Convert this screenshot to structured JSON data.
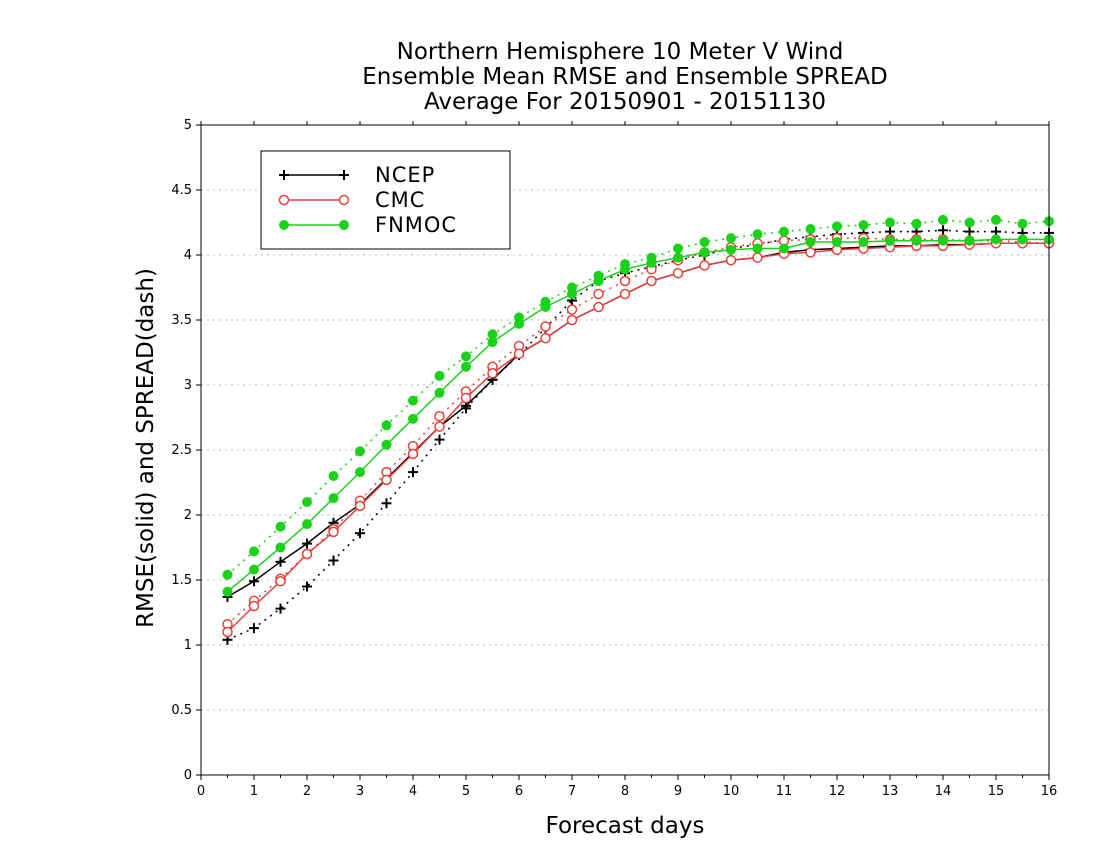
{
  "chart_data": {
    "type": "line",
    "title": [
      "Northern Hemisphere 10 Meter V Wind",
      "Ensemble Mean RMSE and Ensemble SPREAD",
      "Average For 20150901 - 20151130"
    ],
    "xlabel": "Forecast days",
    "ylabel": "RMSE(solid) and SPREAD(dash)",
    "xlim": [
      0,
      16
    ],
    "ylim": [
      0,
      5
    ],
    "xticks": [
      "0",
      "1",
      "2",
      "3",
      "4",
      "5",
      "6",
      "7",
      "8",
      "9",
      "10",
      "11",
      "12",
      "13",
      "14",
      "15",
      "16"
    ],
    "yticks": [
      "0",
      "0.5",
      "1",
      "1.5",
      "2",
      "2.5",
      "3",
      "3.5",
      "4",
      "4.5",
      "5"
    ],
    "grid": "dotted-horizontal",
    "legend_position": "top-left",
    "x": [
      0.5,
      1,
      1.5,
      2,
      2.5,
      3,
      3.5,
      4,
      4.5,
      5,
      5.5,
      6,
      6.5,
      7,
      7.5,
      8,
      8.5,
      9,
      9.5,
      10,
      10.5,
      11,
      11.5,
      12,
      12.5,
      13,
      13.5,
      14,
      14.5,
      15,
      15.5,
      16
    ],
    "series": [
      {
        "name": "NCEP",
        "marker": "plus",
        "color": "#000000",
        "rmse": [
          1.37,
          1.49,
          1.64,
          1.78,
          1.94,
          2.08,
          2.28,
          2.48,
          2.68,
          2.84,
          3.04,
          3.24,
          3.36,
          3.5,
          3.6,
          3.7,
          3.8,
          3.86,
          3.92,
          3.96,
          3.98,
          4.02,
          4.04,
          4.05,
          4.06,
          4.07,
          4.07,
          4.08,
          4.08,
          4.09,
          4.09,
          4.09
        ],
        "spread": [
          1.04,
          1.13,
          1.28,
          1.45,
          1.65,
          1.86,
          2.09,
          2.33,
          2.58,
          2.82,
          3.04,
          3.23,
          3.44,
          3.65,
          3.8,
          3.86,
          3.91,
          3.96,
          4.0,
          4.05,
          4.08,
          4.12,
          4.14,
          4.16,
          4.17,
          4.18,
          4.18,
          4.19,
          4.18,
          4.18,
          4.17,
          4.17
        ]
      },
      {
        "name": "CMC",
        "marker": "circle-open",
        "color": "#e8403a",
        "rmse": [
          1.1,
          1.3,
          1.49,
          1.7,
          1.87,
          2.07,
          2.27,
          2.47,
          2.68,
          2.9,
          3.09,
          3.24,
          3.36,
          3.5,
          3.6,
          3.7,
          3.8,
          3.86,
          3.92,
          3.96,
          3.98,
          4.01,
          4.02,
          4.04,
          4.05,
          4.06,
          4.07,
          4.07,
          4.08,
          4.09,
          4.09,
          4.09
        ],
        "spread": [
          1.16,
          1.34,
          1.51,
          1.7,
          1.89,
          2.11,
          2.33,
          2.53,
          2.76,
          2.95,
          3.14,
          3.3,
          3.45,
          3.58,
          3.7,
          3.8,
          3.89,
          3.96,
          4.02,
          4.06,
          4.09,
          4.11,
          4.12,
          4.13,
          4.13,
          4.12,
          4.12,
          4.12,
          4.11,
          4.11,
          4.1,
          4.09
        ]
      },
      {
        "name": "FNMOC",
        "marker": "circle-filled",
        "color": "#19d219",
        "rmse": [
          1.41,
          1.58,
          1.75,
          1.93,
          2.13,
          2.33,
          2.54,
          2.74,
          2.94,
          3.14,
          3.33,
          3.47,
          3.6,
          3.7,
          3.8,
          3.89,
          3.94,
          3.98,
          4.02,
          4.04,
          4.05,
          4.05,
          4.1,
          4.1,
          4.1,
          4.11,
          4.11,
          4.11,
          4.11,
          4.12,
          4.12,
          4.12
        ],
        "spread": [
          1.54,
          1.72,
          1.91,
          2.1,
          2.3,
          2.49,
          2.69,
          2.88,
          3.07,
          3.22,
          3.39,
          3.52,
          3.64,
          3.75,
          3.84,
          3.93,
          3.98,
          4.05,
          4.1,
          4.13,
          4.16,
          4.18,
          4.2,
          4.22,
          4.23,
          4.25,
          4.24,
          4.27,
          4.25,
          4.27,
          4.24,
          4.26
        ]
      }
    ]
  }
}
